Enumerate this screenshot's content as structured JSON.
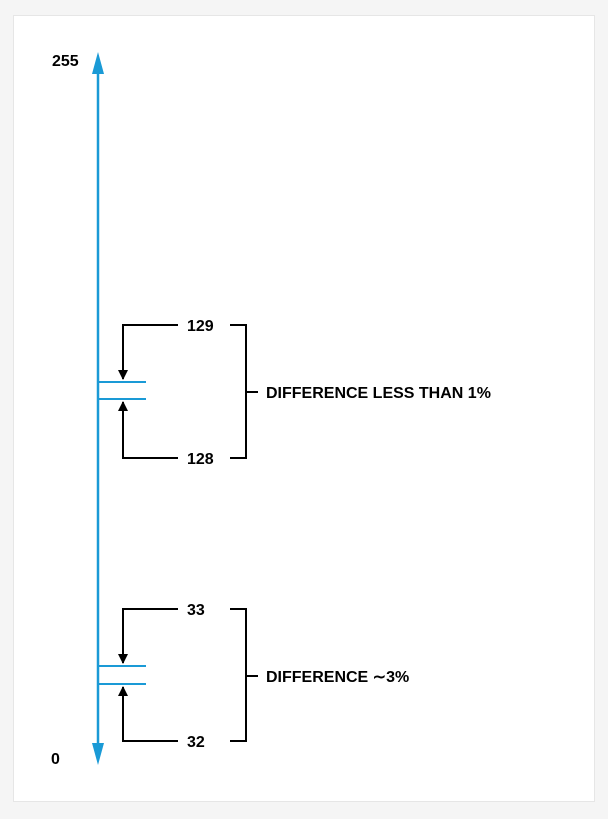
{
  "scale": {
    "top_label": "255",
    "bottom_label": "0",
    "axis_color": "#1a9ad6"
  },
  "groups": [
    {
      "upper_value": "129",
      "lower_value": "128",
      "difference_text": "DIFFERENCE LESS THAN 1%"
    },
    {
      "upper_value": "33",
      "lower_value": "32",
      "difference_text": "DIFFERENCE ∼3%"
    }
  ]
}
